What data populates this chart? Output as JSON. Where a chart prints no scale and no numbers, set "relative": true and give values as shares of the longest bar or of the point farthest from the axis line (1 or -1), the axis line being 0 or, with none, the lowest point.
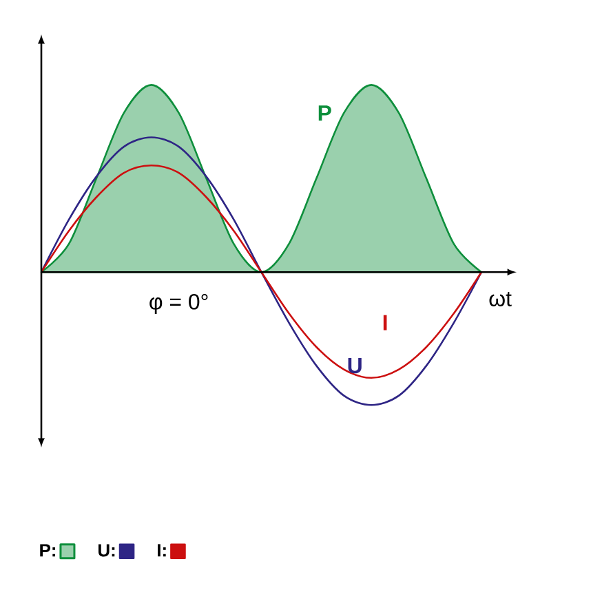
{
  "chart_data": {
    "type": "line",
    "relative": true,
    "xlabel": "ωt",
    "categories": [
      null,
      null,
      null,
      null,
      null,
      null,
      null,
      null,
      null,
      null,
      null,
      null,
      null,
      null,
      null,
      null,
      null
    ],
    "series": [
      {
        "name": "P:",
        "type": "area",
        "color": "#0e8f3c",
        "values": [
          0,
          0.15,
          0.5,
          0.85,
          1,
          0.85,
          0.5,
          0.15,
          0,
          0.15,
          0.5,
          0.85,
          1,
          0.85,
          0.5,
          0.15,
          0
        ]
      },
      {
        "name": "U:",
        "color": "#2e2585",
        "values": [
          0,
          0.28,
          0.51,
          0.67,
          0.72,
          0.67,
          0.51,
          0.28,
          0,
          -0.27,
          -0.5,
          -0.66,
          -0.71,
          -0.66,
          -0.5,
          -0.27,
          0
        ]
      },
      {
        "name": "I:",
        "color": "#cc1010",
        "values": [
          0,
          0.22,
          0.4,
          0.53,
          0.57,
          0.53,
          0.4,
          0.22,
          0,
          -0.22,
          -0.4,
          -0.52,
          -0.565,
          -0.52,
          -0.4,
          -0.22,
          0
        ]
      }
    ],
    "annotations": [
      "**P**",
      "**I**",
      "**U**",
      "φ = 0°"
    ],
    "legend": "bottom left",
    "marker": "none",
    "line_style": "solid"
  }
}
